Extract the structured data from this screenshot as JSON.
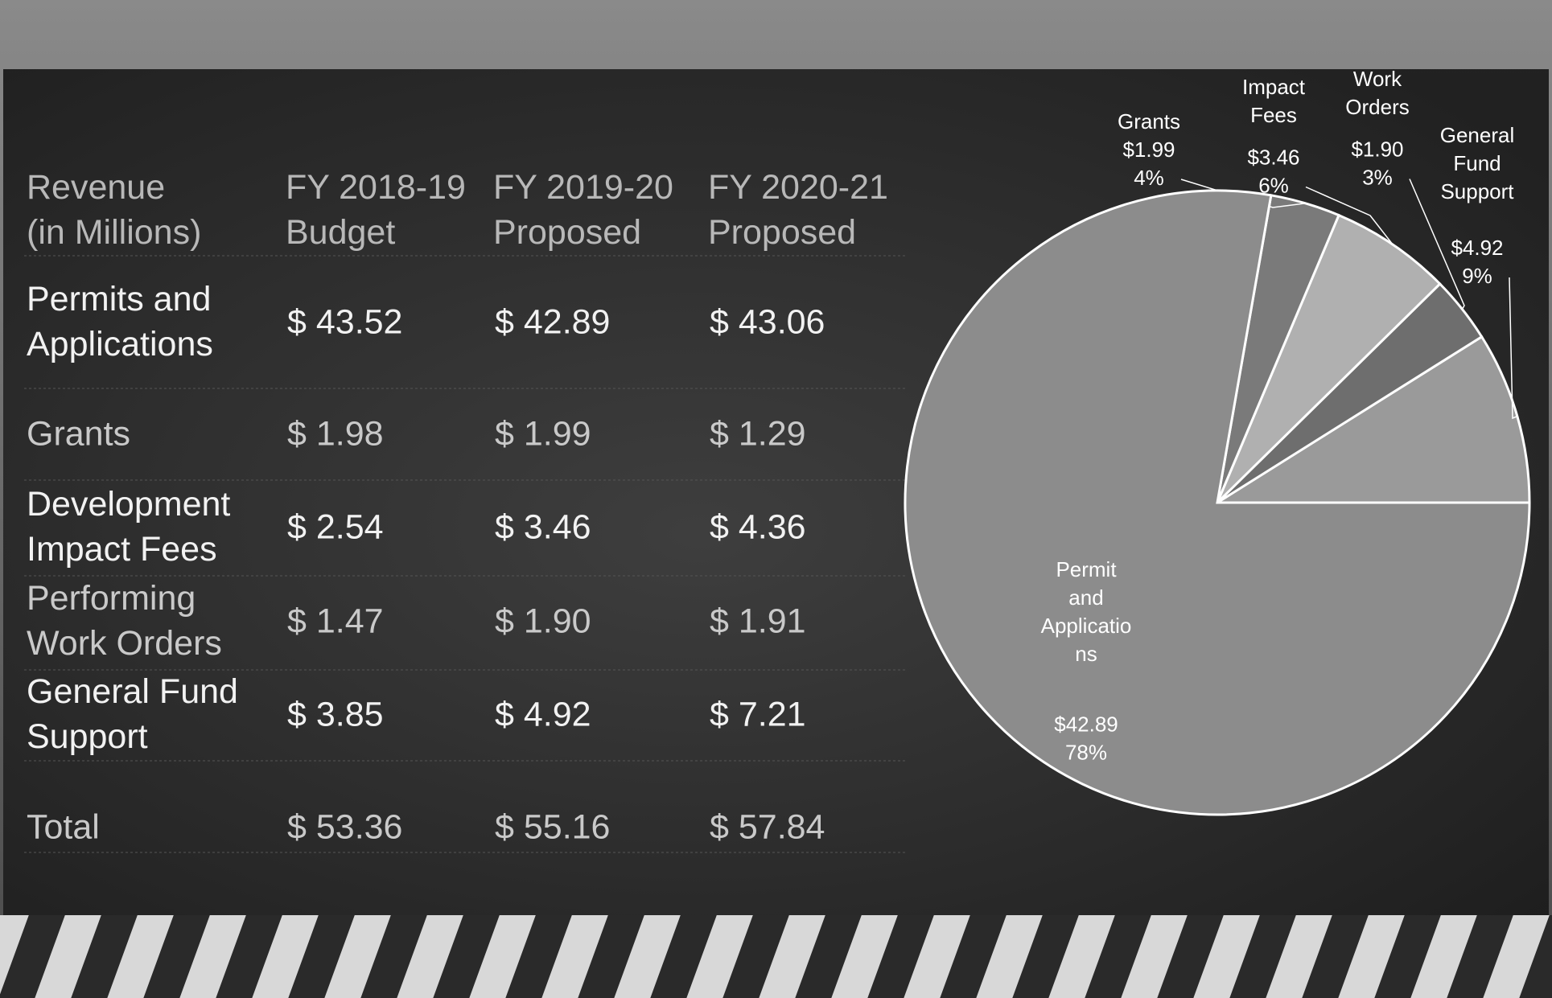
{
  "table": {
    "header": [
      "Revenue\n(in Millions)",
      "FY 2018-19\nBudget",
      "FY 2019-20\nProposed",
      "FY 2020-21\nProposed"
    ],
    "rows": [
      [
        "Permits and\nApplications",
        "$ 43.52",
        "$ 42.89",
        "$ 43.06"
      ],
      [
        "Grants",
        "$ 1.98",
        "$ 1.99",
        "$ 1.29"
      ],
      [
        "Development\nImpact Fees",
        "$ 2.54",
        "$ 3.46",
        "$ 4.36"
      ],
      [
        "Performing\nWork Orders",
        "$ 1.47",
        "$ 1.90",
        "$ 1.91"
      ],
      [
        "General Fund\nSupport",
        "$ 3.85",
        "$ 4.92",
        "$ 7.21"
      ],
      [
        "Total",
        "$ 53.36",
        "$ 55.16",
        "$ 57.84"
      ]
    ]
  },
  "chart_data": {
    "type": "pie",
    "categories": [
      "General\nFund\nSupport",
      "Work\nOrders",
      "Impact\nFees",
      "Grants",
      "Permit\nand\nApplicatio\nns"
    ],
    "values": [
      4.92,
      1.9,
      3.46,
      1.99,
      42.89
    ],
    "value_labels": [
      "$4.92",
      "$1.90",
      "$3.46",
      "$1.99",
      "$42.89"
    ],
    "percents": [
      9,
      3,
      6,
      4,
      78
    ],
    "percent_labels": [
      "9%",
      "3%",
      "6%",
      "4%",
      "78%"
    ],
    "colors": [
      "#9a9a9a",
      "#6e6e6e",
      "#b0b0b0",
      "#7a7a7a",
      "#8c8c8c"
    ]
  }
}
